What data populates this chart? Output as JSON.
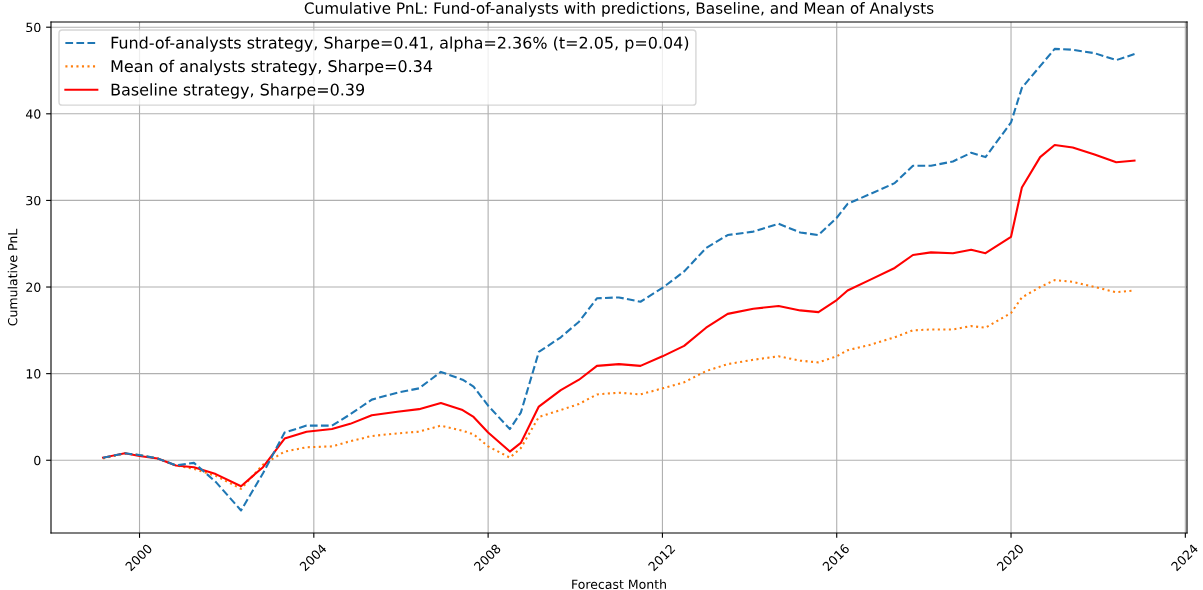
{
  "chart_data": {
    "type": "line",
    "title": "Cumulative PnL: Fund-of-analysts with predictions, Baseline, and Mean of Analysts",
    "xlabel": "Forecast Month",
    "ylabel": "Cumulative PnL",
    "x": [
      "1999-03",
      "1999-09",
      "2000-01",
      "2000-06",
      "2000-11",
      "2001-04",
      "2001-10",
      "2002-05",
      "2002-11",
      "2003-05",
      "2003-11",
      "2004-06",
      "2004-11",
      "2005-05",
      "2005-12",
      "2006-06",
      "2006-12",
      "2007-06",
      "2007-09",
      "2008-01",
      "2008-07",
      "2008-10",
      "2009-03",
      "2009-09",
      "2010-02",
      "2010-07",
      "2011-01",
      "2011-07",
      "2012-01",
      "2012-07",
      "2013-01",
      "2013-07",
      "2014-02",
      "2014-09",
      "2015-03",
      "2015-08",
      "2016-01",
      "2016-04",
      "2016-10",
      "2017-05",
      "2017-10",
      "2018-03",
      "2018-09",
      "2019-02",
      "2019-06",
      "2020-01",
      "2020-04",
      "2020-09",
      "2021-01",
      "2021-06",
      "2021-12",
      "2022-06",
      "2022-11"
    ],
    "series": [
      {
        "name": "Fund-of-analysts strategy, Sharpe=0.41, alpha=2.36% (t=2.05, p=0.04)",
        "color": "#1f77b4",
        "line_style": "dashed",
        "values": [
          0.3,
          0.8,
          0.6,
          0.2,
          -0.6,
          -0.3,
          -2.5,
          -5.8,
          -1.5,
          3.2,
          4.0,
          4.0,
          5.3,
          7.0,
          7.8,
          8.3,
          10.2,
          9.3,
          8.5,
          6.3,
          3.6,
          5.5,
          12.5,
          14.2,
          16.0,
          18.7,
          18.8,
          18.3,
          19.9,
          21.8,
          24.5,
          26.0,
          26.4,
          27.3,
          26.3,
          26.0,
          28.0,
          29.6,
          30.7,
          32.0,
          34.0,
          34.0,
          34.5,
          35.5,
          35.0,
          39.0,
          43.0,
          45.5,
          47.5,
          47.4,
          47.0,
          46.2,
          46.9
        ]
      },
      {
        "name": "Mean of analysts strategy, Sharpe=0.34",
        "color": "#ff7f0e",
        "line_style": "dotted",
        "values": [
          0.2,
          0.8,
          0.6,
          0.2,
          -0.6,
          -1.0,
          -1.8,
          -3.3,
          -0.5,
          1.0,
          1.5,
          1.6,
          2.2,
          2.8,
          3.1,
          3.3,
          4.0,
          3.4,
          3.0,
          1.6,
          0.3,
          1.4,
          5.0,
          5.8,
          6.5,
          7.6,
          7.8,
          7.6,
          8.3,
          9.0,
          10.3,
          11.1,
          11.6,
          12.0,
          11.5,
          11.3,
          12.0,
          12.7,
          13.3,
          14.2,
          15.0,
          15.1,
          15.1,
          15.5,
          15.3,
          17.0,
          18.8,
          20.0,
          20.8,
          20.6,
          20.0,
          19.4,
          19.6
        ]
      },
      {
        "name": "Baseline strategy, Sharpe=0.39",
        "color": "#ff0000",
        "line_style": "solid",
        "values": [
          0.3,
          0.8,
          0.5,
          0.2,
          -0.6,
          -0.8,
          -1.6,
          -3.0,
          -0.8,
          2.5,
          3.3,
          3.6,
          4.2,
          5.2,
          5.6,
          5.9,
          6.6,
          5.8,
          5.0,
          3.2,
          1.0,
          2.0,
          6.2,
          8.1,
          9.3,
          10.9,
          11.1,
          10.9,
          12.0,
          13.2,
          15.3,
          16.9,
          17.5,
          17.8,
          17.3,
          17.1,
          18.5,
          19.6,
          20.8,
          22.2,
          23.7,
          24.0,
          23.9,
          24.3,
          23.9,
          25.8,
          31.5,
          35.0,
          36.4,
          36.1,
          35.3,
          34.4,
          34.6
        ]
      }
    ],
    "xlim": [
      "1997-12-20",
      "2024-01-15"
    ],
    "xticks": [
      "2000",
      "2004",
      "2008",
      "2012",
      "2016",
      "2020",
      "2024"
    ],
    "ylim": [
      -8.4,
      50.6
    ],
    "yticks": [
      0,
      10,
      20,
      30,
      40,
      50
    ],
    "grid": true,
    "legend": "top left",
    "marker": "none"
  }
}
